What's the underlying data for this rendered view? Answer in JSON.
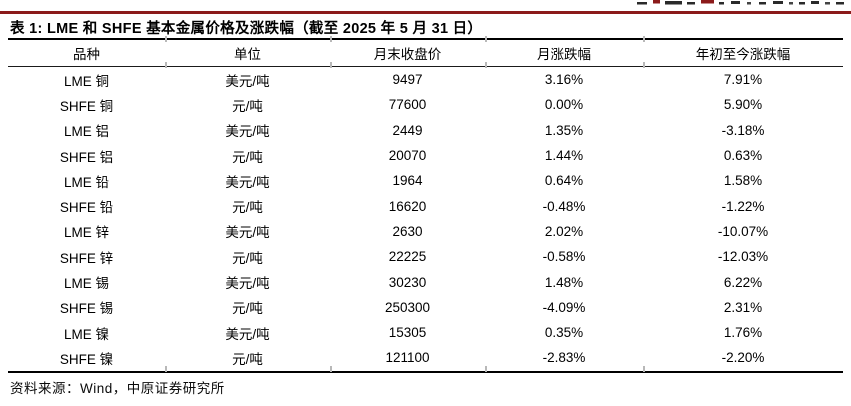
{
  "header": {
    "title": "表 1: LME 和 SHFE 基本金属价格及涨跌幅（截至 2025 年 5 月 31 日）"
  },
  "table": {
    "columns": [
      "品种",
      "单位",
      "月末收盘价",
      "月涨跌幅",
      "年初至今涨跌幅"
    ],
    "rows": [
      [
        "LME 铜",
        "美元/吨",
        "9497",
        "3.16%",
        "7.91%"
      ],
      [
        "SHFE 铜",
        "元/吨",
        "77600",
        "0.00%",
        "5.90%"
      ],
      [
        "LME 铝",
        "美元/吨",
        "2449",
        "1.35%",
        "-3.18%"
      ],
      [
        "SHFE 铝",
        "元/吨",
        "20070",
        "1.44%",
        "0.63%"
      ],
      [
        "LME 铅",
        "美元/吨",
        "1964",
        "0.64%",
        "1.58%"
      ],
      [
        "SHFE 铅",
        "元/吨",
        "16620",
        "-0.48%",
        "-1.22%"
      ],
      [
        "LME 锌",
        "美元/吨",
        "2630",
        "2.02%",
        "-10.07%"
      ],
      [
        "SHFE 锌",
        "元/吨",
        "22225",
        "-0.58%",
        "-12.03%"
      ],
      [
        "LME 锡",
        "美元/吨",
        "30230",
        "1.48%",
        "6.22%"
      ],
      [
        "SHFE 锡",
        "元/吨",
        "250300",
        "-4.09%",
        "2.31%"
      ],
      [
        "LME 镍",
        "美元/吨",
        "15305",
        "0.35%",
        "1.76%"
      ],
      [
        "SHFE 镍",
        "元/吨",
        "121100",
        "-2.83%",
        "-2.20%"
      ]
    ]
  },
  "footer": {
    "source": "资料来源：Wind，中原证券研究所"
  },
  "colors": {
    "accent_red": "#8B1A1A",
    "rule_black": "#000000",
    "tick_gray": "#b8b8b8"
  }
}
